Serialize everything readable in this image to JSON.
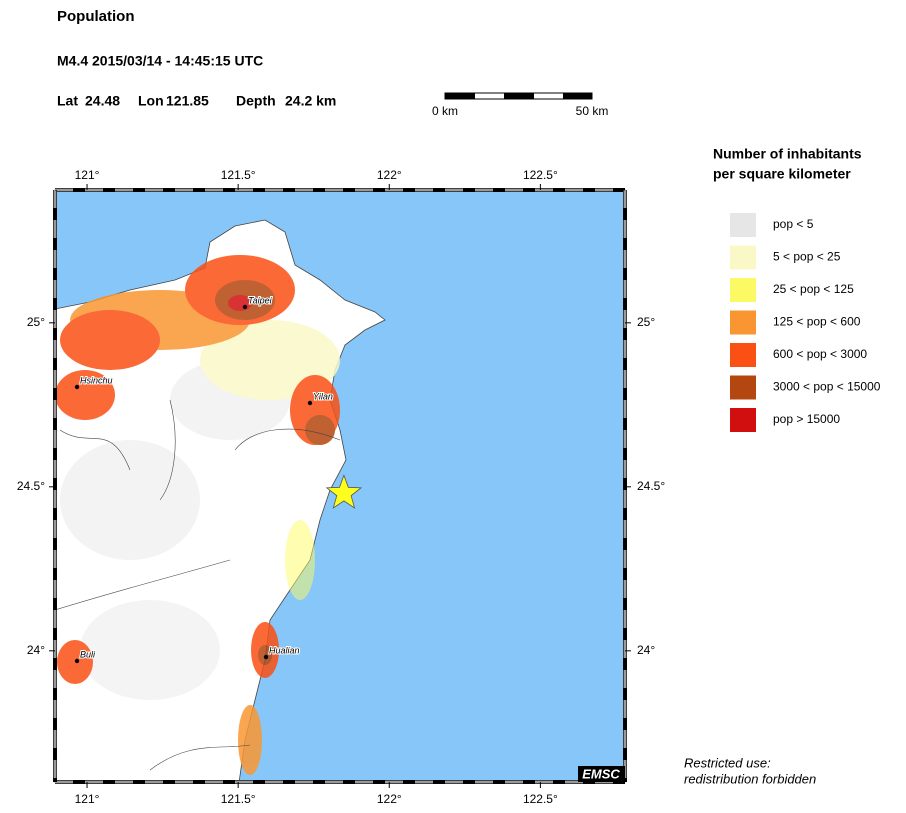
{
  "header": {
    "title": "Population",
    "event_line": "M4.4  2015/03/14 - 14:45:15 UTC"
  },
  "event": {
    "lat_label": "Lat",
    "lat": 24.48,
    "lon_label": "Lon",
    "lon": 121.85,
    "depth_label": "Depth",
    "depth": "24.2 km"
  },
  "scale_bar": {
    "start": "0 km",
    "end": "50 km"
  },
  "map": {
    "lonlim": [
      120.894,
      122.78
    ],
    "latlim": [
      23.6,
      25.405
    ],
    "lon_ticks": [
      {
        "value": 121,
        "label": "121°"
      },
      {
        "value": 121.5,
        "label": "121.5°"
      },
      {
        "value": 122,
        "label": "122°"
      },
      {
        "value": 122.5,
        "label": "122.5°"
      }
    ],
    "lat_ticks": [
      {
        "value": 25,
        "label": "25°"
      },
      {
        "value": 24.5,
        "label": "24.5°"
      },
      {
        "value": 24,
        "label": "24°"
      }
    ],
    "sea_color": "#86c6f8",
    "cities": [
      "Taipei",
      "Hsinchu",
      "Yilan",
      "Hualian",
      "Buli"
    ],
    "badge": "EMSC"
  },
  "legend": {
    "title": [
      "Number of inhabitants",
      "per square kilometer"
    ],
    "items": [
      {
        "label": "pop < 5",
        "color": "#e6e6e6"
      },
      {
        "label": "5 < pop < 25",
        "color": "#fbf8c8"
      },
      {
        "label": "25 < pop < 125",
        "color": "#fbfa64"
      },
      {
        "label": "125 < pop < 600",
        "color": "#fa9632"
      },
      {
        "label": "600 < pop < 3000",
        "color": "#fa5014"
      },
      {
        "label": "3000 < pop < 15000",
        "color": "#b4460f"
      },
      {
        "label": "pop > 15000",
        "color": "#d20f0f"
      }
    ]
  },
  "footer": {
    "lines": [
      "Restricted use:",
      "redistribution forbidden"
    ]
  }
}
